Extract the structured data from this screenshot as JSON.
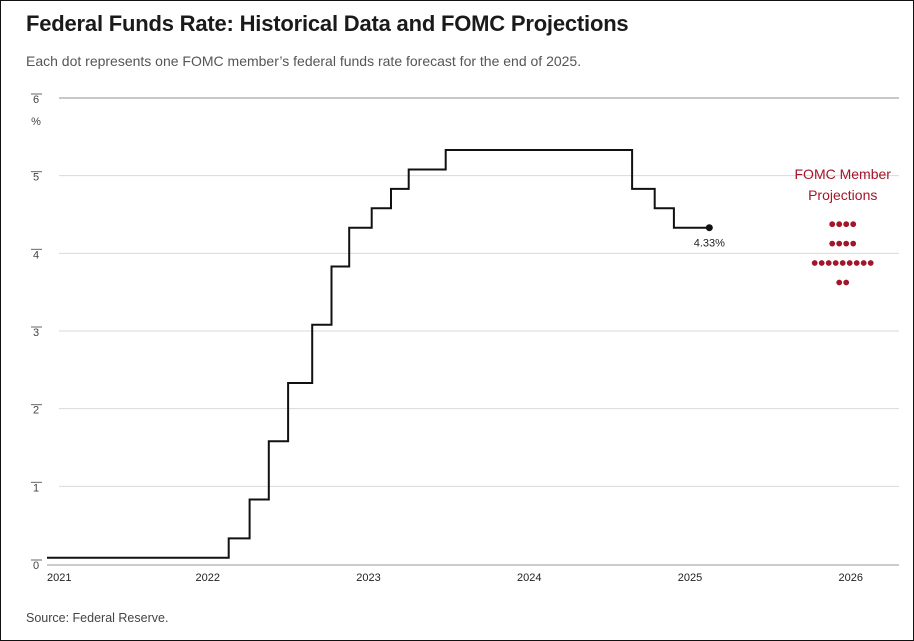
{
  "title": "Federal Funds Rate: Historical Data and FOMC Projections",
  "subtitle": "Each dot represents one FOMC member’s federal funds rate forecast for the end of 2025.",
  "source": "Source: Federal Reserve.",
  "colors": {
    "line": "#111111",
    "dots": "#a3162a",
    "grid": "#d9d9d9",
    "axis": "#999999"
  },
  "chart_data": {
    "type": "line",
    "title": "Federal Funds Rate: Historical Data and FOMC Projections",
    "ylabel": "%",
    "ylim": [
      0,
      6
    ],
    "xlim": [
      2021.0,
      2026.3
    ],
    "yticks": [
      "0",
      "1",
      "2",
      "3",
      "4",
      "5",
      "6"
    ],
    "xticks": [
      "2021",
      "2022",
      "2023",
      "2024",
      "2025",
      "2026"
    ],
    "grid": true,
    "series": [
      {
        "x": [
          2021.0,
          2022.13,
          2022.13,
          2022.26,
          2022.26,
          2022.38,
          2022.38,
          2022.5,
          2022.5,
          2022.65,
          2022.65,
          2022.77,
          2022.77,
          2022.88,
          2022.88,
          2023.02,
          2023.02,
          2023.14,
          2023.14,
          2023.25,
          2023.25,
          2023.48,
          2023.48,
          2024.64,
          2024.64,
          2024.78,
          2024.78,
          2024.9,
          2024.9,
          2025.12
        ],
        "y": [
          0.08,
          0.08,
          0.33,
          0.33,
          0.83,
          0.83,
          1.58,
          1.58,
          2.33,
          2.33,
          3.08,
          3.08,
          3.83,
          3.83,
          4.33,
          4.33,
          4.58,
          4.58,
          4.83,
          4.83,
          5.08,
          5.08,
          5.33,
          5.33,
          4.83,
          4.83,
          4.58,
          4.58,
          4.33,
          4.33
        ]
      }
    ],
    "end_label": "4.33%",
    "projections": {
      "label_lines": [
        "FOMC Member",
        "Projections"
      ],
      "x": 2025.95,
      "rows": [
        {
          "rate": 4.375,
          "count": 4
        },
        {
          "rate": 4.125,
          "count": 4
        },
        {
          "rate": 3.875,
          "count": 9
        },
        {
          "rate": 3.625,
          "count": 2
        }
      ]
    }
  }
}
